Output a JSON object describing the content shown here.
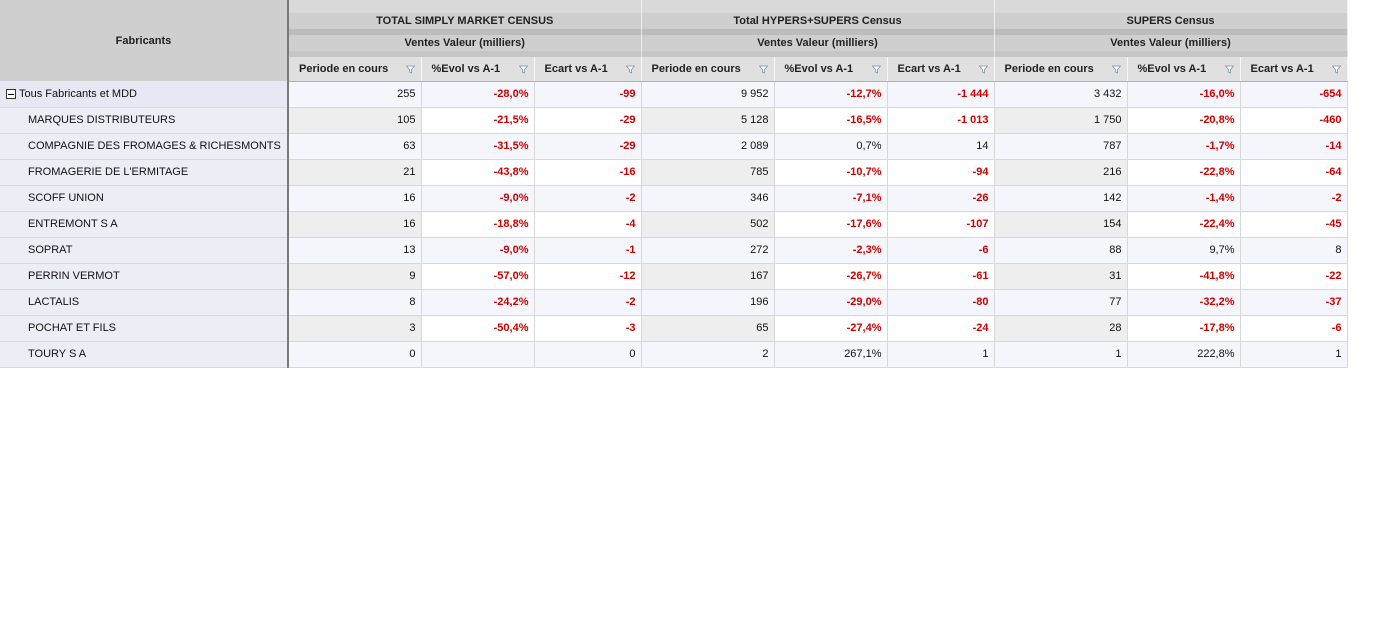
{
  "row_header_label": "Fabricants",
  "groups": [
    {
      "label": "TOTAL SIMPLY MARKET CENSUS",
      "measure": "Ventes Valeur (milliers)"
    },
    {
      "label": "Total HYPERS+SUPERS Census",
      "measure": "Ventes Valeur (milliers)"
    },
    {
      "label": "SUPERS Census",
      "measure": "Ventes Valeur (milliers)"
    }
  ],
  "columns": [
    "Periode en cours",
    "%Evol vs A-1",
    "Ecart vs A-1"
  ],
  "filter_icon": "filter-funnel-icon",
  "rows": [
    {
      "name": "Tous Fabricants et MDD",
      "top": true,
      "values": [
        "255",
        "-28,0%",
        "-99",
        "9 952",
        "-12,7%",
        "-1 444",
        "3 432",
        "-16,0%",
        "-654"
      ]
    },
    {
      "name": "MARQUES DISTRIBUTEURS",
      "values": [
        "105",
        "-21,5%",
        "-29",
        "5 128",
        "-16,5%",
        "-1 013",
        "1 750",
        "-20,8%",
        "-460"
      ]
    },
    {
      "name": "COMPAGNIE DES FROMAGES & RICHESMONTS",
      "values": [
        "63",
        "-31,5%",
        "-29",
        "2 089",
        "0,7%",
        "14",
        "787",
        "-1,7%",
        "-14"
      ]
    },
    {
      "name": "FROMAGERIE DE L'ERMITAGE",
      "values": [
        "21",
        "-43,8%",
        "-16",
        "785",
        "-10,7%",
        "-94",
        "216",
        "-22,8%",
        "-64"
      ]
    },
    {
      "name": "SCOFF UNION",
      "values": [
        "16",
        "-9,0%",
        "-2",
        "346",
        "-7,1%",
        "-26",
        "142",
        "-1,4%",
        "-2"
      ]
    },
    {
      "name": "ENTREMONT S A",
      "values": [
        "16",
        "-18,8%",
        "-4",
        "502",
        "-17,6%",
        "-107",
        "154",
        "-22,4%",
        "-45"
      ]
    },
    {
      "name": "SOPRAT",
      "values": [
        "13",
        "-9,0%",
        "-1",
        "272",
        "-2,3%",
        "-6",
        "88",
        "9,7%",
        "8"
      ]
    },
    {
      "name": "PERRIN VERMOT",
      "values": [
        "9",
        "-57,0%",
        "-12",
        "167",
        "-26,7%",
        "-61",
        "31",
        "-41,8%",
        "-22"
      ]
    },
    {
      "name": "LACTALIS",
      "values": [
        "8",
        "-24,2%",
        "-2",
        "196",
        "-29,0%",
        "-80",
        "77",
        "-32,2%",
        "-37"
      ]
    },
    {
      "name": "POCHAT ET FILS",
      "values": [
        "3",
        "-50,4%",
        "-3",
        "65",
        "-27,4%",
        "-24",
        "28",
        "-17,8%",
        "-6"
      ]
    },
    {
      "name": "TOURY S A",
      "values": [
        "0",
        "",
        "0",
        "2",
        "267,1%",
        "1",
        "1",
        "222,8%",
        "1"
      ]
    }
  ]
}
